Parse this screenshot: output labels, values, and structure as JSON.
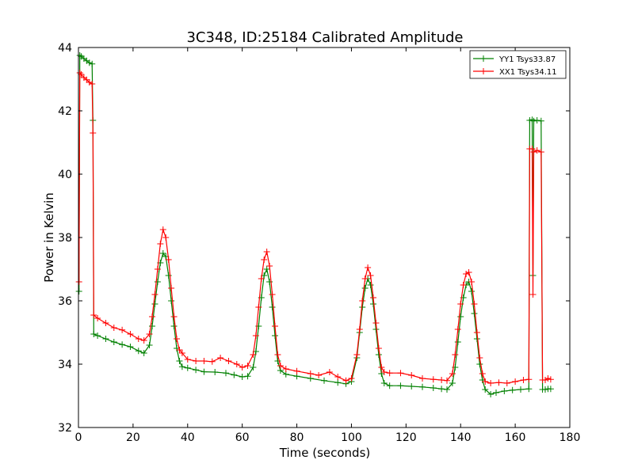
{
  "chart_data": {
    "type": "line",
    "title": "3C348, ID:25184 Calibrated Amplitude",
    "xlabel": "Time (seconds)",
    "ylabel": "Power in Kelvin",
    "xlim": [
      0,
      180
    ],
    "ylim": [
      32,
      44
    ],
    "x_ticks": [
      0,
      20,
      40,
      60,
      80,
      100,
      120,
      140,
      160,
      180
    ],
    "y_ticks": [
      32,
      34,
      36,
      38,
      40,
      42,
      44
    ],
    "x_tick_labels": [
      "0",
      "20",
      "40",
      "60",
      "80",
      "100",
      "120",
      "140",
      "160",
      "180"
    ],
    "y_tick_labels": [
      "32",
      "34",
      "36",
      "38",
      "40",
      "42",
      "44"
    ],
    "grid": false,
    "legend_position": "top-right",
    "marker": "+",
    "series": [
      {
        "name": "YY1 Tsys33.87",
        "color": "#008000",
        "points": [
          [
            0.2,
            36.3
          ],
          [
            0.5,
            43.75
          ],
          [
            1,
            43.72
          ],
          [
            2,
            43.65
          ],
          [
            3,
            43.58
          ],
          [
            4,
            43.52
          ],
          [
            5,
            43.48
          ],
          [
            5.3,
            41.7
          ],
          [
            5.6,
            34.95
          ],
          [
            7,
            34.9
          ],
          [
            10,
            34.8
          ],
          [
            13,
            34.7
          ],
          [
            16,
            34.62
          ],
          [
            19,
            34.55
          ],
          [
            22,
            34.42
          ],
          [
            24,
            34.35
          ],
          [
            26,
            34.6
          ],
          [
            27,
            35.2
          ],
          [
            28,
            35.9
          ],
          [
            29,
            36.6
          ],
          [
            30,
            37.2
          ],
          [
            31,
            37.5
          ],
          [
            32,
            37.4
          ],
          [
            33,
            36.8
          ],
          [
            34,
            36.0
          ],
          [
            35,
            35.2
          ],
          [
            36,
            34.5
          ],
          [
            37,
            34.1
          ],
          [
            38,
            33.92
          ],
          [
            40,
            33.88
          ],
          [
            43,
            33.82
          ],
          [
            46,
            33.76
          ],
          [
            50,
            33.75
          ],
          [
            54,
            33.72
          ],
          [
            57,
            33.66
          ],
          [
            60,
            33.6
          ],
          [
            62,
            33.62
          ],
          [
            64,
            33.9
          ],
          [
            65,
            34.4
          ],
          [
            66,
            35.2
          ],
          [
            67,
            36.1
          ],
          [
            68,
            36.8
          ],
          [
            69,
            37.0
          ],
          [
            70,
            36.6
          ],
          [
            71,
            35.8
          ],
          [
            72,
            34.9
          ],
          [
            73,
            34.1
          ],
          [
            74,
            33.8
          ],
          [
            76,
            33.68
          ],
          [
            80,
            33.62
          ],
          [
            85,
            33.55
          ],
          [
            90,
            33.48
          ],
          [
            95,
            33.42
          ],
          [
            98,
            33.38
          ],
          [
            100,
            33.45
          ],
          [
            102,
            34.2
          ],
          [
            103,
            35.0
          ],
          [
            104,
            35.8
          ],
          [
            105,
            36.4
          ],
          [
            106,
            36.7
          ],
          [
            107,
            36.5
          ],
          [
            108,
            35.9
          ],
          [
            109,
            35.1
          ],
          [
            110,
            34.3
          ],
          [
            111,
            33.7
          ],
          [
            112,
            33.4
          ],
          [
            114,
            33.32
          ],
          [
            118,
            33.32
          ],
          [
            122,
            33.3
          ],
          [
            126,
            33.28
          ],
          [
            130,
            33.25
          ],
          [
            133,
            33.22
          ],
          [
            135,
            33.2
          ],
          [
            137,
            33.4
          ],
          [
            138,
            33.9
          ],
          [
            139,
            34.7
          ],
          [
            140,
            35.5
          ],
          [
            141,
            36.1
          ],
          [
            142,
            36.5
          ],
          [
            143,
            36.6
          ],
          [
            144,
            36.3
          ],
          [
            145,
            35.6
          ],
          [
            146,
            34.8
          ],
          [
            147,
            34.0
          ],
          [
            148,
            33.5
          ],
          [
            149,
            33.2
          ],
          [
            151,
            33.05
          ],
          [
            153,
            33.1
          ],
          [
            156,
            33.15
          ],
          [
            159,
            33.18
          ],
          [
            162,
            33.2
          ],
          [
            165,
            33.22
          ],
          [
            165.3,
            41.7
          ],
          [
            166.2,
            41.72
          ],
          [
            166.5,
            36.8
          ],
          [
            166.8,
            41.68
          ],
          [
            168,
            41.7
          ],
          [
            169.5,
            41.68
          ],
          [
            170,
            33.2
          ],
          [
            171,
            33.2
          ],
          [
            172,
            33.22
          ],
          [
            173,
            33.22
          ]
        ]
      },
      {
        "name": "XX1 Tsys34.11",
        "color": "#ff0000",
        "points": [
          [
            0.2,
            36.6
          ],
          [
            0.5,
            43.2
          ],
          [
            1,
            43.15
          ],
          [
            2,
            43.05
          ],
          [
            3,
            42.98
          ],
          [
            4,
            42.9
          ],
          [
            5,
            42.85
          ],
          [
            5.3,
            41.3
          ],
          [
            5.6,
            35.55
          ],
          [
            7,
            35.45
          ],
          [
            10,
            35.3
          ],
          [
            13,
            35.15
          ],
          [
            16,
            35.08
          ],
          [
            19,
            34.95
          ],
          [
            22,
            34.8
          ],
          [
            24,
            34.75
          ],
          [
            26,
            34.95
          ],
          [
            27,
            35.5
          ],
          [
            28,
            36.2
          ],
          [
            29,
            37.0
          ],
          [
            30,
            37.8
          ],
          [
            31,
            38.25
          ],
          [
            32,
            38.0
          ],
          [
            33,
            37.3
          ],
          [
            34,
            36.4
          ],
          [
            35,
            35.5
          ],
          [
            36,
            34.8
          ],
          [
            37,
            34.45
          ],
          [
            38,
            34.35
          ],
          [
            40,
            34.15
          ],
          [
            43,
            34.1
          ],
          [
            46,
            34.1
          ],
          [
            49,
            34.08
          ],
          [
            52,
            34.2
          ],
          [
            55,
            34.1
          ],
          [
            58,
            34.0
          ],
          [
            60,
            33.9
          ],
          [
            62,
            33.95
          ],
          [
            64,
            34.3
          ],
          [
            65,
            34.9
          ],
          [
            66,
            35.8
          ],
          [
            67,
            36.7
          ],
          [
            68,
            37.3
          ],
          [
            69,
            37.55
          ],
          [
            70,
            37.1
          ],
          [
            71,
            36.2
          ],
          [
            72,
            35.2
          ],
          [
            73,
            34.3
          ],
          [
            74,
            33.95
          ],
          [
            76,
            33.85
          ],
          [
            80,
            33.78
          ],
          [
            85,
            33.7
          ],
          [
            88,
            33.65
          ],
          [
            92,
            33.75
          ],
          [
            95,
            33.6
          ],
          [
            98,
            33.48
          ],
          [
            100,
            33.55
          ],
          [
            102,
            34.3
          ],
          [
            103,
            35.1
          ],
          [
            104,
            36.0
          ],
          [
            105,
            36.7
          ],
          [
            106,
            37.05
          ],
          [
            107,
            36.8
          ],
          [
            108,
            36.1
          ],
          [
            109,
            35.3
          ],
          [
            110,
            34.5
          ],
          [
            111,
            33.9
          ],
          [
            112,
            33.75
          ],
          [
            114,
            33.72
          ],
          [
            118,
            33.72
          ],
          [
            122,
            33.65
          ],
          [
            126,
            33.55
          ],
          [
            130,
            33.52
          ],
          [
            133,
            33.5
          ],
          [
            135,
            33.48
          ],
          [
            137,
            33.7
          ],
          [
            138,
            34.3
          ],
          [
            139,
            35.1
          ],
          [
            140,
            35.9
          ],
          [
            141,
            36.5
          ],
          [
            142,
            36.85
          ],
          [
            143,
            36.9
          ],
          [
            144,
            36.6
          ],
          [
            145,
            35.9
          ],
          [
            146,
            35.0
          ],
          [
            147,
            34.2
          ],
          [
            148,
            33.7
          ],
          [
            149,
            33.45
          ],
          [
            151,
            33.4
          ],
          [
            154,
            33.42
          ],
          [
            157,
            33.4
          ],
          [
            160,
            33.45
          ],
          [
            163,
            33.5
          ],
          [
            165,
            33.52
          ],
          [
            165.3,
            40.8
          ],
          [
            166.2,
            40.8
          ],
          [
            166.5,
            36.2
          ],
          [
            166.8,
            40.7
          ],
          [
            168,
            40.75
          ],
          [
            169.5,
            40.7
          ],
          [
            170,
            33.5
          ],
          [
            171,
            33.5
          ],
          [
            172,
            33.55
          ],
          [
            173,
            33.52
          ]
        ]
      }
    ]
  }
}
